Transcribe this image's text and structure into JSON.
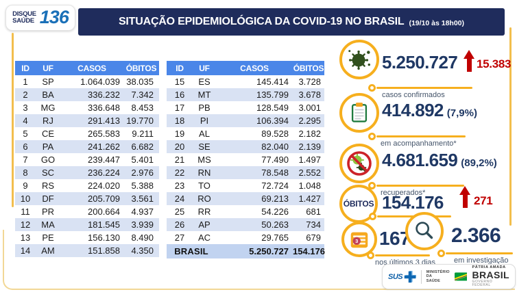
{
  "header": {
    "badge_line1": "DISQUE",
    "badge_line2": "SAÚDE",
    "badge_number": "136",
    "title": "SITUAÇÃO EPIDEMIOLÓGICA DA COVID-19 NO BRASIL",
    "timestamp": "(19/10 às 18h00)"
  },
  "table": {
    "headers": [
      "ID",
      "UF",
      "CASOS",
      "ÓBITOS"
    ],
    "total_label": "BRASIL",
    "total_casos": "5.250.727",
    "total_obitos": "154.176"
  },
  "chart_data": {
    "type": "table",
    "title": "SITUAÇÃO EPIDEMIOLÓGICA DA COVID-19 NO BRASIL (19/10 às 18h00)",
    "columns": [
      "ID",
      "UF",
      "CASOS",
      "ÓBITOS"
    ],
    "rows": [
      [
        "1",
        "SP",
        "1.064.039",
        "38.035"
      ],
      [
        "2",
        "BA",
        "336.232",
        "7.342"
      ],
      [
        "3",
        "MG",
        "336.648",
        "8.453"
      ],
      [
        "4",
        "RJ",
        "291.413",
        "19.770"
      ],
      [
        "5",
        "CE",
        "265.583",
        "9.211"
      ],
      [
        "6",
        "PA",
        "241.262",
        "6.682"
      ],
      [
        "7",
        "GO",
        "239.447",
        "5.401"
      ],
      [
        "8",
        "SC",
        "236.224",
        "2.976"
      ],
      [
        "9",
        "RS",
        "224.020",
        "5.388"
      ],
      [
        "10",
        "DF",
        "205.709",
        "3.561"
      ],
      [
        "11",
        "PR",
        "200.664",
        "4.937"
      ],
      [
        "12",
        "MA",
        "181.545",
        "3.939"
      ],
      [
        "13",
        "PE",
        "156.130",
        "8.490"
      ],
      [
        "14",
        "AM",
        "151.858",
        "4.350"
      ],
      [
        "15",
        "ES",
        "145.414",
        "3.728"
      ],
      [
        "16",
        "MT",
        "135.799",
        "3.678"
      ],
      [
        "17",
        "PB",
        "128.549",
        "3.001"
      ],
      [
        "18",
        "PI",
        "106.394",
        "2.295"
      ],
      [
        "19",
        "AL",
        "89.528",
        "2.182"
      ],
      [
        "20",
        "SE",
        "82.040",
        "2.139"
      ],
      [
        "21",
        "MS",
        "77.490",
        "1.497"
      ],
      [
        "22",
        "RN",
        "78.548",
        "2.552"
      ],
      [
        "23",
        "TO",
        "72.724",
        "1.048"
      ],
      [
        "24",
        "RO",
        "69.213",
        "1.427"
      ],
      [
        "25",
        "RR",
        "54.226",
        "681"
      ],
      [
        "26",
        "AP",
        "50.263",
        "734"
      ],
      [
        "27",
        "AC",
        "29.765",
        "679"
      ]
    ],
    "total_row": [
      "BRASIL",
      "5.250.727",
      "154.176"
    ],
    "summary_stats": {
      "casos_confirmados": {
        "value": "5.250.727",
        "new": "15.383"
      },
      "em_acompanhamento": {
        "value": "414.892",
        "percent": "7,9%"
      },
      "recuperados": {
        "value": "4.681.659",
        "percent": "89,2%"
      },
      "obitos": {
        "value": "154.176",
        "new": "271"
      },
      "obitos_ultimos_3_dias": "167",
      "em_investigacao": "2.366"
    }
  },
  "stats": {
    "confirmed": {
      "value": "5.250.727",
      "delta": "15.383",
      "label": "casos confirmados"
    },
    "monitoring": {
      "value": "414.892",
      "percent": "(7,9%)",
      "label": "em acompanhamento*"
    },
    "recovered": {
      "value": "4.681.659",
      "percent": "(89,2%)",
      "label": "recuperados*"
    },
    "deaths": {
      "badge": "ÓBITOS",
      "value": "154.176",
      "delta": "271"
    },
    "deaths_recent": {
      "value": "167",
      "label": "nos últimos 3 dias",
      "calendar_badge": "3"
    },
    "investigation": {
      "value": "2.366",
      "label": "em investigação"
    }
  },
  "footer": {
    "sus": "SUS",
    "ministry_line1": "MINISTÉRIO DA",
    "ministry_line2": "SAÚDE",
    "brand_top": "PÁTRIA AMADA",
    "brand": "BRASIL",
    "brand_bottom": "GOVERNO FEDERAL"
  },
  "colors": {
    "navy": "#1F2C5C",
    "table_header_blue": "#4A86E8",
    "row_alt_blue": "#D9E2F3",
    "total_row_blue": "#C1D3F0",
    "number_blue": "#1F3864",
    "alert_red": "#C00000",
    "accent_yellow": "#F6AF1E",
    "label_gray": "#44546A",
    "badge_blue": "#1A70B8",
    "icon_dark_green": "#31501E",
    "icon_light_green": "#8CC63F"
  }
}
